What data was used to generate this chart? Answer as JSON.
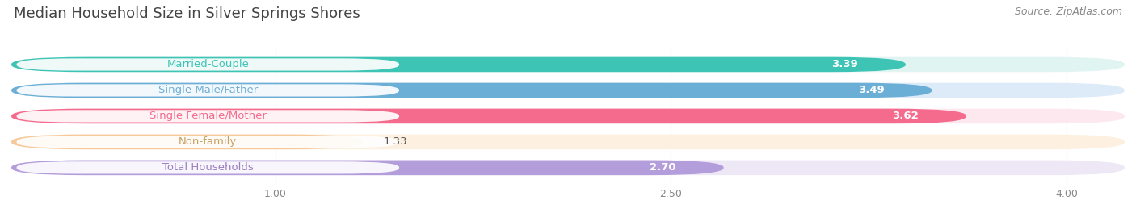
{
  "title": "Median Household Size in Silver Springs Shores",
  "source": "Source: ZipAtlas.com",
  "categories": [
    "Married-Couple",
    "Single Male/Father",
    "Single Female/Mother",
    "Non-family",
    "Total Households"
  ],
  "values": [
    3.39,
    3.49,
    3.62,
    1.33,
    2.7
  ],
  "bar_colors": [
    "#3dc4b5",
    "#6baed6",
    "#f46b8e",
    "#f5c99a",
    "#b39ddb"
  ],
  "bar_bg_colors": [
    "#e0f4f2",
    "#ddeaf7",
    "#fde8ef",
    "#fdf0e0",
    "#ede7f6"
  ],
  "label_text_colors": [
    "#3dc4b5",
    "#6baed6",
    "#f46b8e",
    "#c8a060",
    "#9a7fc0"
  ],
  "xlim_min": 0,
  "xlim_max": 4.22,
  "xticks": [
    1.0,
    2.5,
    4.0
  ],
  "label_fontsize": 9.5,
  "value_fontsize": 9.5,
  "title_fontsize": 13,
  "source_fontsize": 9,
  "background_color": "#ffffff"
}
